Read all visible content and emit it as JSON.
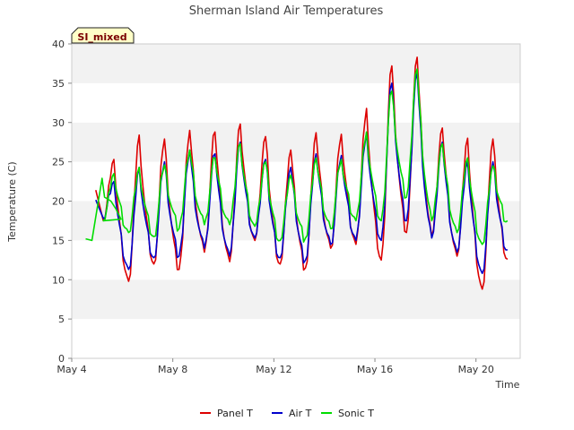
{
  "chart_data": {
    "type": "line",
    "title": "Sherman Island Air Temperatures",
    "xlabel": "Time",
    "ylabel": "Temperature (C)",
    "site_tag": "SI_mixed",
    "x_unit": "days (May 2020-style daily timeline)",
    "xlim": [
      4.0,
      21.75
    ],
    "ylim": [
      0,
      40
    ],
    "yticks": [
      0,
      5,
      10,
      15,
      20,
      25,
      30,
      35,
      40
    ],
    "xticks": [
      {
        "x": 4,
        "label": "May 4"
      },
      {
        "x": 8,
        "label": "May 8"
      },
      {
        "x": 12,
        "label": "May 12"
      },
      {
        "x": 16,
        "label": "May 16"
      },
      {
        "x": 20,
        "label": "May 20"
      }
    ],
    "grid": "horizontal bands",
    "legend_position": "bottom",
    "series": [
      {
        "name": "Panel T",
        "color": "#dd0000",
        "days": [
          {
            "d": 5,
            "min": 17.5,
            "max": 25.3
          },
          {
            "d": 6,
            "min": 9.8,
            "max": 28.4
          },
          {
            "d": 7,
            "min": 12.0,
            "max": 27.9
          },
          {
            "d": 8,
            "min": 11.3,
            "max": 29.0
          },
          {
            "d": 9,
            "min": 13.5,
            "max": 28.8
          },
          {
            "d": 10,
            "min": 12.3,
            "max": 29.8
          },
          {
            "d": 11,
            "min": 15.0,
            "max": 28.2
          },
          {
            "d": 12,
            "min": 12.0,
            "max": 26.5
          },
          {
            "d": 13,
            "min": 11.5,
            "max": 28.7
          },
          {
            "d": 14,
            "min": 14.0,
            "max": 28.5
          },
          {
            "d": 15,
            "min": 14.5,
            "max": 31.8
          },
          {
            "d": 16,
            "min": 12.5,
            "max": 37.2
          },
          {
            "d": 17,
            "min": 16.0,
            "max": 38.3
          },
          {
            "d": 18,
            "min": 15.5,
            "max": 29.3
          },
          {
            "d": 19,
            "min": 13.0,
            "max": 28.0
          },
          {
            "d": 20,
            "min": 8.8,
            "max": 27.9
          },
          {
            "d": 21,
            "min": 12.6,
            "max": 12.6
          }
        ]
      },
      {
        "name": "Air T",
        "color": "#0000cc",
        "days": [
          {
            "d": 5,
            "min": 17.8,
            "max": 22.5
          },
          {
            "d": 6,
            "min": 11.3,
            "max": 24.3
          },
          {
            "d": 7,
            "min": 12.8,
            "max": 25.0
          },
          {
            "d": 8,
            "min": 13.0,
            "max": 26.5
          },
          {
            "d": 9,
            "min": 14.0,
            "max": 26.0
          },
          {
            "d": 10,
            "min": 13.0,
            "max": 27.5
          },
          {
            "d": 11,
            "min": 15.3,
            "max": 25.3
          },
          {
            "d": 12,
            "min": 12.8,
            "max": 24.3
          },
          {
            "d": 13,
            "min": 12.5,
            "max": 26.0
          },
          {
            "d": 14,
            "min": 14.5,
            "max": 25.8
          },
          {
            "d": 15,
            "min": 15.0,
            "max": 28.7
          },
          {
            "d": 16,
            "min": 15.0,
            "max": 35.0
          },
          {
            "d": 17,
            "min": 17.5,
            "max": 36.3
          },
          {
            "d": 18,
            "min": 15.3,
            "max": 27.5
          },
          {
            "d": 19,
            "min": 13.5,
            "max": 25.0
          },
          {
            "d": 20,
            "min": 10.8,
            "max": 25.0
          },
          {
            "d": 21,
            "min": 13.8,
            "max": 13.8
          }
        ]
      },
      {
        "name": "Sonic T",
        "color": "#00dd00",
        "start": [
          [
            4.55,
            15.2
          ],
          [
            4.8,
            15.0
          ],
          [
            5.2,
            22.9
          ],
          [
            5.3,
            20.5
          ],
          [
            5.55,
            20.0
          ],
          [
            5.75,
            19.0
          ],
          [
            5.95,
            17.7
          ]
        ],
        "days": [
          {
            "d": 5,
            "min": 17.5,
            "max": 23.5
          },
          {
            "d": 6,
            "min": 16.0,
            "max": 24.3
          },
          {
            "d": 7,
            "min": 15.5,
            "max": 24.6
          },
          {
            "d": 8,
            "min": 16.5,
            "max": 26.5
          },
          {
            "d": 9,
            "min": 17.0,
            "max": 25.5
          },
          {
            "d": 10,
            "min": 17.0,
            "max": 27.3
          },
          {
            "d": 11,
            "min": 16.8,
            "max": 25.0
          },
          {
            "d": 12,
            "min": 15.0,
            "max": 23.3
          },
          {
            "d": 13,
            "min": 15.3,
            "max": 25.5
          },
          {
            "d": 14,
            "min": 16.5,
            "max": 25.3
          },
          {
            "d": 15,
            "min": 17.5,
            "max": 28.8
          },
          {
            "d": 16,
            "min": 17.5,
            "max": 34.0
          },
          {
            "d": 17,
            "min": 20.5,
            "max": 36.8
          },
          {
            "d": 18,
            "min": 17.5,
            "max": 27.3
          },
          {
            "d": 19,
            "min": 16.0,
            "max": 25.5
          },
          {
            "d": 20,
            "min": 14.5,
            "max": 24.5
          },
          {
            "d": 21,
            "min": 17.5,
            "max": 17.5
          }
        ]
      }
    ]
  }
}
